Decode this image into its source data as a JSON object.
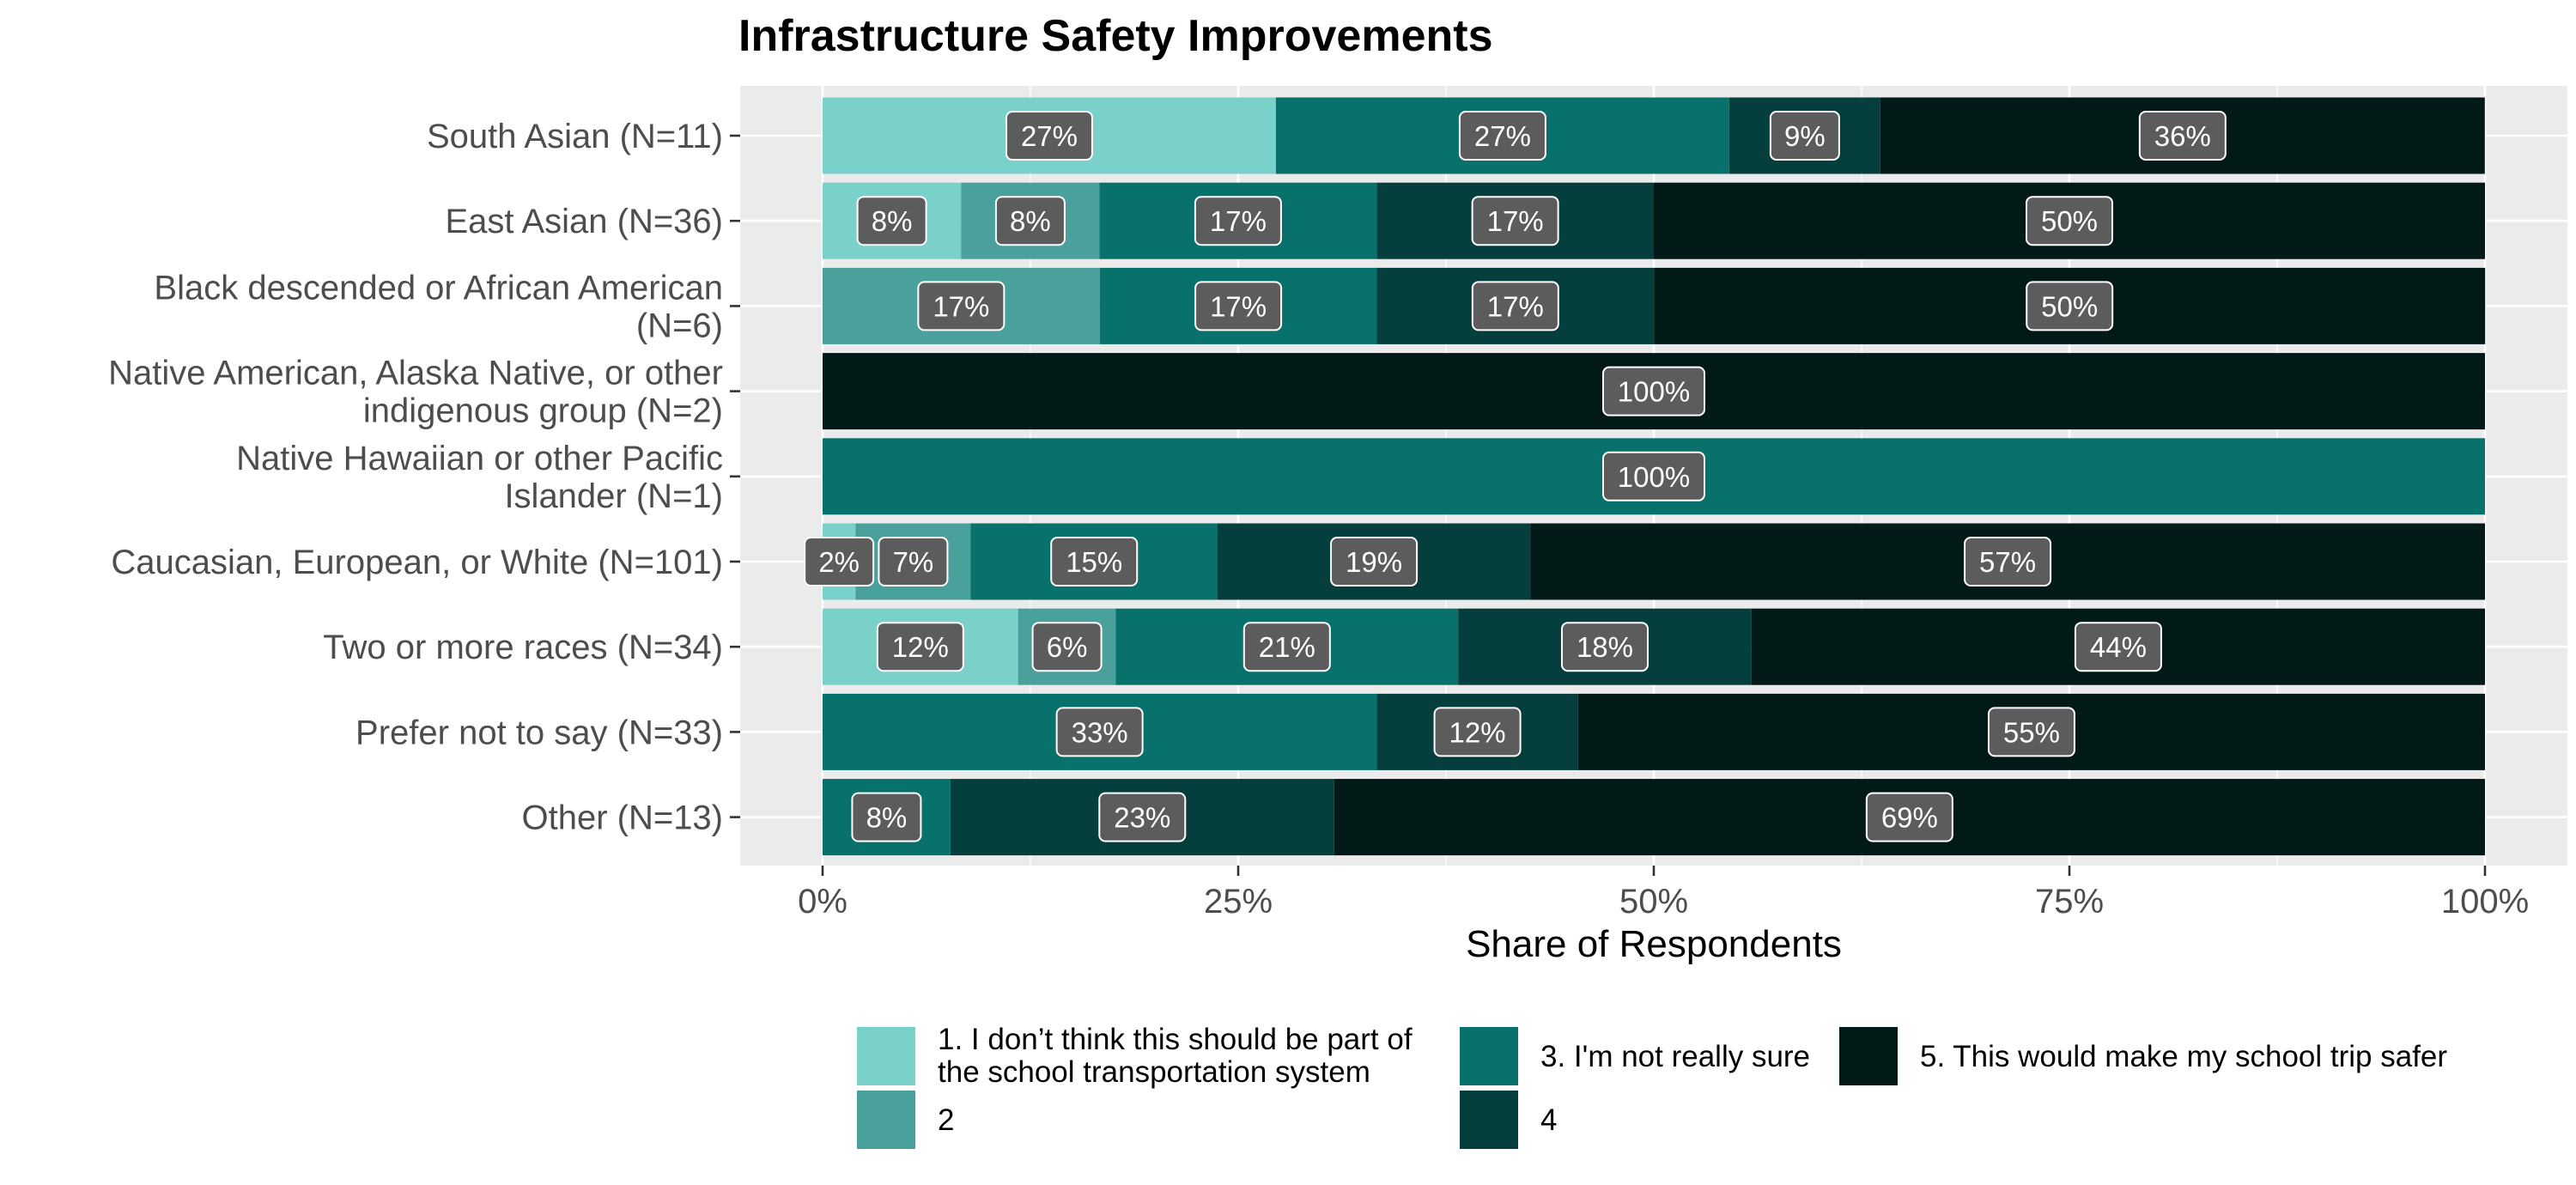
{
  "chart_data": {
    "type": "bar",
    "orientation": "horizontal",
    "stacked": true,
    "title": "Infrastructure Safety Improvements",
    "xlabel": "Share of Respondents",
    "ylabel": "",
    "xlim": [
      0,
      1
    ],
    "x_ticks": [
      "0%",
      "25%",
      "50%",
      "75%",
      "100%"
    ],
    "grid": true,
    "legend_position": "bottom",
    "categories": [
      "South Asian (N=11)",
      "East Asian (N=36)",
      "Black descended or African American (N=6)",
      "Native American, Alaska Native, or other indigenous group (N=2)",
      "Native Hawaiian or other Pacific Islander (N=1)",
      "Caucasian, European, or White (N=101)",
      "Two or more races (N=34)",
      "Prefer not to say (N=33)",
      "Other (N=13)"
    ],
    "category_label_lines": [
      [
        "South Asian (N=11)"
      ],
      [
        "East Asian (N=36)"
      ],
      [
        "Black descended or African American",
        "(N=6)"
      ],
      [
        "Native American, Alaska Native, or other",
        "indigenous group (N=2)"
      ],
      [
        "Native Hawaiian or other Pacific",
        "Islander (N=1)"
      ],
      [
        "Caucasian, European, or White (N=101)"
      ],
      [
        "Two or more races (N=34)"
      ],
      [
        "Prefer not to say (N=33)"
      ],
      [
        "Other (N=13)"
      ]
    ],
    "series": [
      {
        "name": "1. I don’t think this should be part of the school transportation system",
        "legend_lines": [
          "1. I don’t think this should be part of",
          "the school transportation system"
        ],
        "color": "#7ad1c9",
        "values": [
          0.2727,
          0.0833,
          0,
          0,
          0,
          0.0198,
          0.1176,
          0,
          0
        ],
        "labels": [
          "27%",
          "8%",
          "",
          "",
          "",
          "2%",
          "12%",
          "",
          ""
        ]
      },
      {
        "name": "2",
        "legend_lines": [
          "2"
        ],
        "color": "#4aa19b",
        "values": [
          0,
          0.0833,
          0.1667,
          0,
          0,
          0.0693,
          0.0588,
          0,
          0
        ],
        "labels": [
          "",
          "8%",
          "17%",
          "",
          "",
          "7%",
          "6%",
          "",
          ""
        ]
      },
      {
        "name": "3. I'm not really sure",
        "legend_lines": [
          "3. I'm not really sure"
        ],
        "color": "#09716c",
        "values": [
          0.2727,
          0.1667,
          0.1667,
          0,
          1.0,
          0.1485,
          0.2059,
          0.3333,
          0.0769
        ],
        "labels": [
          "27%",
          "17%",
          "17%",
          "",
          "100%",
          "15%",
          "21%",
          "33%",
          "8%"
        ]
      },
      {
        "name": "4",
        "legend_lines": [
          "4"
        ],
        "color": "#053f3d",
        "values": [
          0.0909,
          0.1667,
          0.1667,
          0,
          0,
          0.1881,
          0.1765,
          0.1212,
          0.2308
        ],
        "labels": [
          "9%",
          "17%",
          "17%",
          "",
          "",
          "19%",
          "18%",
          "12%",
          "23%"
        ]
      },
      {
        "name": "5. This would make my school trip safer",
        "legend_lines": [
          "5. This would make my school trip safer"
        ],
        "color": "#011a17",
        "values": [
          0.3636,
          0.5,
          0.5,
          1.0,
          0,
          0.5743,
          0.4412,
          0.5455,
          0.6923
        ],
        "labels": [
          "36%",
          "50%",
          "50%",
          "100%",
          "",
          "57%",
          "44%",
          "55%",
          "69%"
        ]
      }
    ]
  }
}
